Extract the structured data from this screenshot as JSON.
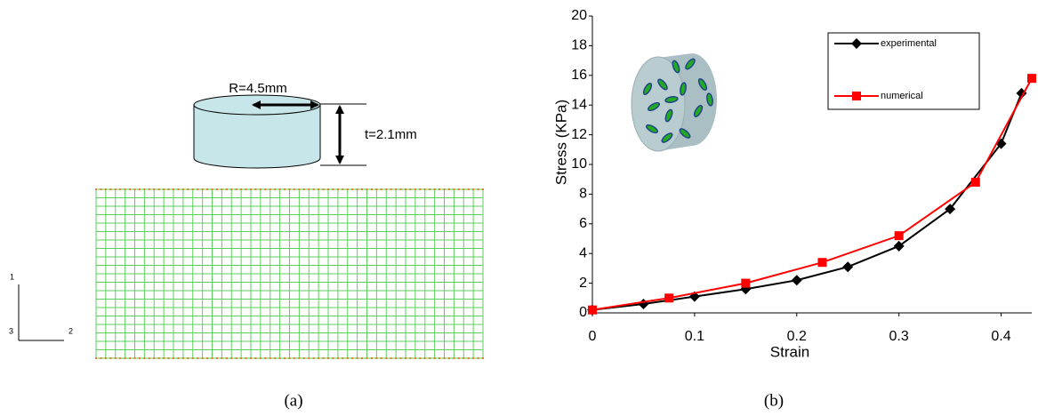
{
  "diagram": {
    "radius_label": "R=4.5mm",
    "thickness_label": "t=2.1mm",
    "axis_1": "1",
    "axis_2": "2",
    "axis_3": "3"
  },
  "captions": [
    "(a)",
    "(b)"
  ],
  "chart_data": {
    "type": "line",
    "x_label": "Strain",
    "y_label": "Stress (KPa)",
    "xlim": [
      0,
      0.43
    ],
    "xticks": [
      0,
      0.1,
      0.2,
      0.3,
      0.4
    ],
    "ylim": [
      0,
      20
    ],
    "yticks": [
      0,
      2,
      4,
      6,
      8,
      10,
      12,
      14,
      16,
      18,
      20
    ],
    "legend": "upper-right",
    "series": [
      {
        "name": "experimental",
        "color": "#000000",
        "marker": "diamond",
        "x": [
          0,
          0.05,
          0.1,
          0.15,
          0.2,
          0.25,
          0.3,
          0.35,
          0.4,
          0.42
        ],
        "values": [
          0.2,
          0.6,
          1.1,
          1.6,
          2.2,
          3.1,
          4.5,
          7.0,
          11.4,
          14.8
        ]
      },
      {
        "name": "numerical",
        "color": "#ff0000",
        "marker": "square",
        "x": [
          0,
          0.075,
          0.15,
          0.225,
          0.3,
          0.375,
          0.43
        ],
        "values": [
          0.2,
          1.0,
          2.0,
          3.4,
          5.2,
          8.8,
          15.8
        ]
      }
    ]
  }
}
